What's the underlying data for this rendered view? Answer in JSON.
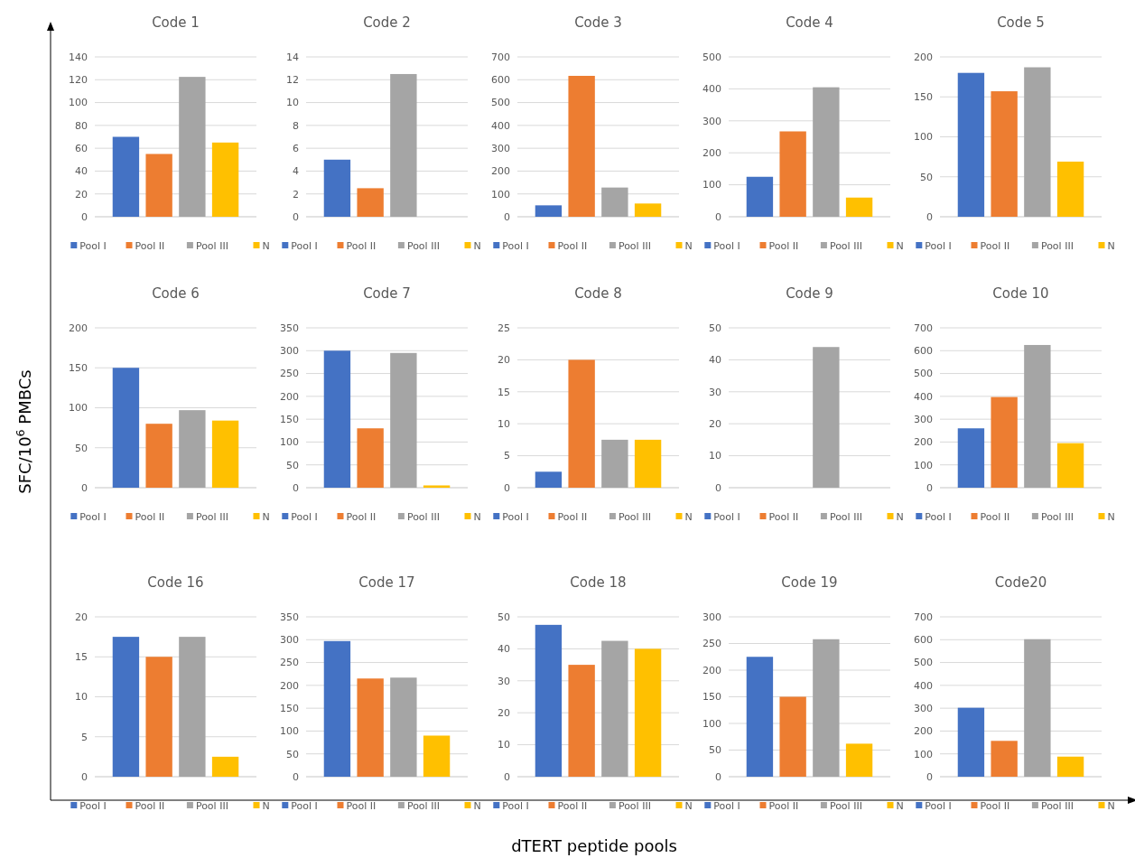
{
  "chart_data": [
    {
      "type": "bar",
      "title": "Code 1",
      "categories": [
        null
      ],
      "series": [
        {
          "name": "Pool I",
          "color": "#4472c4",
          "values": [
            70
          ]
        },
        {
          "name": "Pool II",
          "color": "#ed7d31",
          "values": [
            55
          ]
        },
        {
          "name": "Pool III",
          "color": "#a5a5a5",
          "values": [
            122.5
          ]
        },
        {
          "name": "N",
          "color": "#ffc000",
          "values": [
            65
          ]
        }
      ],
      "ylim": [
        0,
        140
      ],
      "yticks": [
        0,
        20,
        40,
        60,
        80,
        100,
        120,
        140
      ],
      "grid": "y",
      "legend": "bottom"
    },
    {
      "type": "bar",
      "title": "Code 2",
      "categories": [
        null
      ],
      "series": [
        {
          "name": "Pool I",
          "color": "#4472c4",
          "values": [
            5
          ]
        },
        {
          "name": "Pool II",
          "color": "#ed7d31",
          "values": [
            2.5
          ]
        },
        {
          "name": "Pool III",
          "color": "#a5a5a5",
          "values": [
            12.5
          ]
        },
        {
          "name": "N",
          "color": "#ffc000",
          "values": [
            0
          ]
        }
      ],
      "ylim": [
        0,
        14
      ],
      "yticks": [
        0,
        2,
        4,
        6,
        8,
        10,
        12,
        14
      ],
      "grid": "y",
      "legend": "bottom"
    },
    {
      "type": "bar",
      "title": "Code 3",
      "categories": [
        null
      ],
      "series": [
        {
          "name": "Pool I",
          "color": "#4472c4",
          "values": [
            50
          ]
        },
        {
          "name": "Pool II",
          "color": "#ed7d31",
          "values": [
            617
          ]
        },
        {
          "name": "Pool III",
          "color": "#a5a5a5",
          "values": [
            128
          ]
        },
        {
          "name": "N",
          "color": "#ffc000",
          "values": [
            58
          ]
        }
      ],
      "ylim": [
        0,
        700
      ],
      "yticks": [
        0,
        100,
        200,
        300,
        400,
        500,
        600,
        700
      ],
      "grid": "y",
      "legend": "bottom"
    },
    {
      "type": "bar",
      "title": "Code 4",
      "categories": [
        null
      ],
      "series": [
        {
          "name": "Pool I",
          "color": "#4472c4",
          "values": [
            125
          ]
        },
        {
          "name": "Pool II",
          "color": "#ed7d31",
          "values": [
            267
          ]
        },
        {
          "name": "Pool III",
          "color": "#a5a5a5",
          "values": [
            405
          ]
        },
        {
          "name": "N",
          "color": "#ffc000",
          "values": [
            60
          ]
        }
      ],
      "ylim": [
        0,
        500
      ],
      "yticks": [
        0,
        100,
        200,
        300,
        400,
        500
      ],
      "grid": "y",
      "legend": "bottom"
    },
    {
      "type": "bar",
      "title": "Code 5",
      "categories": [
        null
      ],
      "series": [
        {
          "name": "Pool I",
          "color": "#4472c4",
          "values": [
            180
          ]
        },
        {
          "name": "Pool II",
          "color": "#ed7d31",
          "values": [
            157
          ]
        },
        {
          "name": "Pool III",
          "color": "#a5a5a5",
          "values": [
            187
          ]
        },
        {
          "name": "N",
          "color": "#ffc000",
          "values": [
            69
          ]
        }
      ],
      "ylim": [
        0,
        200
      ],
      "yticks": [
        0,
        50,
        100,
        150,
        200
      ],
      "grid": "y",
      "legend": "bottom"
    },
    {
      "type": "bar",
      "title": "Code 6",
      "categories": [
        null
      ],
      "series": [
        {
          "name": "Pool I",
          "color": "#4472c4",
          "values": [
            150
          ]
        },
        {
          "name": "Pool II",
          "color": "#ed7d31",
          "values": [
            80
          ]
        },
        {
          "name": "Pool III",
          "color": "#a5a5a5",
          "values": [
            97
          ]
        },
        {
          "name": "N",
          "color": "#ffc000",
          "values": [
            84
          ]
        }
      ],
      "ylim": [
        0,
        200
      ],
      "yticks": [
        0,
        50,
        100,
        150,
        200
      ],
      "grid": "y",
      "legend": "bottom"
    },
    {
      "type": "bar",
      "title": "Code 7",
      "categories": [
        null
      ],
      "series": [
        {
          "name": "Pool I",
          "color": "#4472c4",
          "values": [
            300
          ]
        },
        {
          "name": "Pool II",
          "color": "#ed7d31",
          "values": [
            130
          ]
        },
        {
          "name": "Pool III",
          "color": "#a5a5a5",
          "values": [
            295
          ]
        },
        {
          "name": "N",
          "color": "#ffc000",
          "values": [
            5
          ]
        }
      ],
      "ylim": [
        0,
        350
      ],
      "yticks": [
        0,
        50,
        100,
        150,
        200,
        250,
        300,
        350
      ],
      "grid": "y",
      "legend": "bottom"
    },
    {
      "type": "bar",
      "title": "Code 8",
      "categories": [
        null
      ],
      "series": [
        {
          "name": "Pool I",
          "color": "#4472c4",
          "values": [
            2.5
          ]
        },
        {
          "name": "Pool II",
          "color": "#ed7d31",
          "values": [
            20
          ]
        },
        {
          "name": "Pool III",
          "color": "#a5a5a5",
          "values": [
            7.5
          ]
        },
        {
          "name": "N",
          "color": "#ffc000",
          "values": [
            7.5
          ]
        }
      ],
      "ylim": [
        0,
        25
      ],
      "yticks": [
        0,
        5,
        10,
        15,
        20,
        25
      ],
      "grid": "y",
      "legend": "bottom"
    },
    {
      "type": "bar",
      "title": "Code 9",
      "categories": [
        null
      ],
      "series": [
        {
          "name": "Pool I",
          "color": "#4472c4",
          "values": [
            0
          ]
        },
        {
          "name": "Pool II",
          "color": "#ed7d31",
          "values": [
            0
          ]
        },
        {
          "name": "Pool III",
          "color": "#a5a5a5",
          "values": [
            44
          ]
        },
        {
          "name": "N",
          "color": "#ffc000",
          "values": [
            0
          ]
        }
      ],
      "ylim": [
        0,
        50
      ],
      "yticks": [
        0,
        10,
        20,
        30,
        40,
        50
      ],
      "grid": "y",
      "legend": "bottom"
    },
    {
      "type": "bar",
      "title": "Code 10",
      "categories": [
        null
      ],
      "series": [
        {
          "name": "Pool I",
          "color": "#4472c4",
          "values": [
            260
          ]
        },
        {
          "name": "Pool II",
          "color": "#ed7d31",
          "values": [
            397
          ]
        },
        {
          "name": "Pool III",
          "color": "#a5a5a5",
          "values": [
            625
          ]
        },
        {
          "name": "N",
          "color": "#ffc000",
          "values": [
            195
          ]
        }
      ],
      "ylim": [
        0,
        700
      ],
      "yticks": [
        0,
        100,
        200,
        300,
        400,
        500,
        600,
        700
      ],
      "grid": "y",
      "legend": "bottom"
    },
    {
      "type": "bar",
      "title": "Code 16",
      "categories": [
        null
      ],
      "series": [
        {
          "name": "Pool I",
          "color": "#4472c4",
          "values": [
            17.5
          ]
        },
        {
          "name": "Pool II",
          "color": "#ed7d31",
          "values": [
            15
          ]
        },
        {
          "name": "Pool III",
          "color": "#a5a5a5",
          "values": [
            17.5
          ]
        },
        {
          "name": "N",
          "color": "#ffc000",
          "values": [
            2.5
          ]
        }
      ],
      "ylim": [
        0,
        20
      ],
      "yticks": [
        0,
        5,
        10,
        15,
        20
      ],
      "grid": "y",
      "legend": "bottom"
    },
    {
      "type": "bar",
      "title": "Code 17",
      "categories": [
        null
      ],
      "series": [
        {
          "name": "Pool I",
          "color": "#4472c4",
          "values": [
            297
          ]
        },
        {
          "name": "Pool II",
          "color": "#ed7d31",
          "values": [
            215
          ]
        },
        {
          "name": "Pool III",
          "color": "#a5a5a5",
          "values": [
            217
          ]
        },
        {
          "name": "N",
          "color": "#ffc000",
          "values": [
            90
          ]
        }
      ],
      "ylim": [
        0,
        350
      ],
      "yticks": [
        0,
        50,
        100,
        150,
        200,
        250,
        300,
        350
      ],
      "grid": "y",
      "legend": "bottom"
    },
    {
      "type": "bar",
      "title": "Code 18",
      "categories": [
        null
      ],
      "series": [
        {
          "name": "Pool I",
          "color": "#4472c4",
          "values": [
            47.5
          ]
        },
        {
          "name": "Pool II",
          "color": "#ed7d31",
          "values": [
            35
          ]
        },
        {
          "name": "Pool III",
          "color": "#a5a5a5",
          "values": [
            42.5
          ]
        },
        {
          "name": "N",
          "color": "#ffc000",
          "values": [
            40
          ]
        }
      ],
      "ylim": [
        0,
        50
      ],
      "yticks": [
        0,
        10,
        20,
        30,
        40,
        50
      ],
      "grid": "y",
      "legend": "bottom"
    },
    {
      "type": "bar",
      "title": "Code 19",
      "categories": [
        null
      ],
      "series": [
        {
          "name": "Pool I",
          "color": "#4472c4",
          "values": [
            225
          ]
        },
        {
          "name": "Pool II",
          "color": "#ed7d31",
          "values": [
            150
          ]
        },
        {
          "name": "Pool III",
          "color": "#a5a5a5",
          "values": [
            258
          ]
        },
        {
          "name": "N",
          "color": "#ffc000",
          "values": [
            62
          ]
        }
      ],
      "ylim": [
        0,
        300
      ],
      "yticks": [
        0,
        50,
        100,
        150,
        200,
        250,
        300
      ],
      "grid": "y",
      "legend": "bottom"
    },
    {
      "type": "bar",
      "title": "Code20",
      "categories": [
        null
      ],
      "series": [
        {
          "name": "Pool I",
          "color": "#4472c4",
          "values": [
            302
          ]
        },
        {
          "name": "Pool II",
          "color": "#ed7d31",
          "values": [
            157
          ]
        },
        {
          "name": "Pool III",
          "color": "#a5a5a5",
          "values": [
            602
          ]
        },
        {
          "name": "N",
          "color": "#ffc000",
          "values": [
            88
          ]
        }
      ],
      "ylim": [
        0,
        700
      ],
      "yticks": [
        0,
        100,
        200,
        300,
        400,
        500,
        600,
        700
      ],
      "grid": "y",
      "legend": "bottom"
    },
    {
      "type": "other",
      "xlabel": "dTERT peptide pools",
      "ylabel": "SFC/10$^{6}$ PMBCs"
    }
  ]
}
